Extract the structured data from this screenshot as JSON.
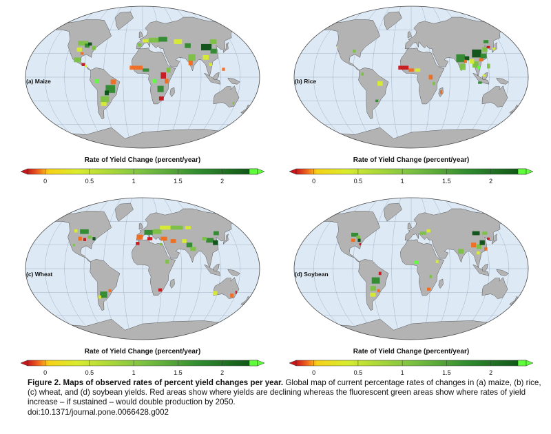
{
  "panels": [
    {
      "id": "maize",
      "label": "(a) Maize"
    },
    {
      "id": "rice",
      "label": "(b) Rice"
    },
    {
      "id": "wheat",
      "label": "(c) Wheat"
    },
    {
      "id": "soybean",
      "label": "(d) Soybean"
    }
  ],
  "legend": {
    "title": "Rate of Yield Change (percent/year)",
    "ticks": [
      "0",
      "0.5",
      "1",
      "1.5",
      "2"
    ],
    "tick_values": [
      0,
      0.5,
      1,
      1.5,
      2
    ],
    "range": [
      -0.2,
      2.4
    ],
    "colors": {
      "decline_dark": "#c8161b",
      "decline": "#f26b1d",
      "zero": "#f7d117",
      "low": "#d8ec2f",
      "mid": "#7cc242",
      "high": "#2f8a2e",
      "very_high": "#0c4f15",
      "fluorescent": "#5eff3a"
    }
  },
  "map_colors": {
    "ocean": "#dde9f5",
    "land": "#b3b3b3",
    "outline": "#555555",
    "graticule": "#9aaac0"
  },
  "caption": {
    "bold": "Figure 2. Maps of observed rates of percent yield changes per year.",
    "text": " Global map of current percentage rates of changes in (a) maize, (b) rice, (c) wheat, and (d) soybean yields. Red areas show where yields are declining whereas the fluorescent green areas show where rates of yield increase – if sustained – would double production by 2050.",
    "doi": "doi:10.1371/journal.pone.0066428.g002"
  }
}
